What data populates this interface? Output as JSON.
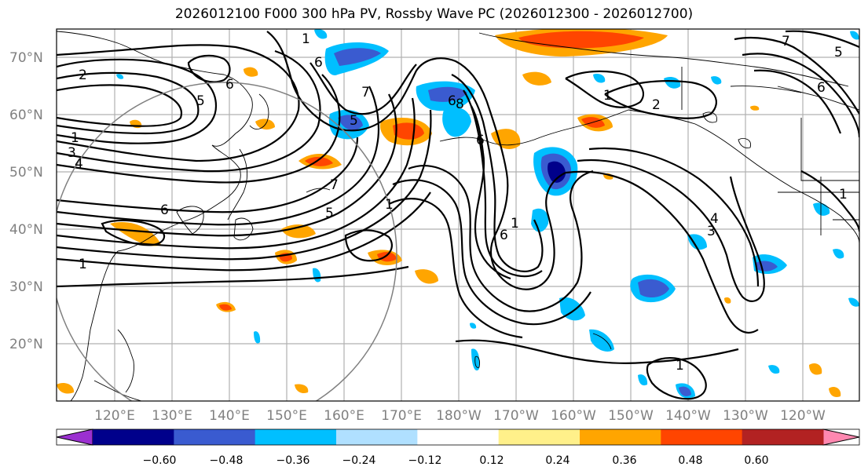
{
  "title": "2026012100 F000 300 hPa PV, Rossby Wave PC (2026012300 - 2026012700)",
  "lat_labels": [
    "70°N",
    "60°N",
    "50°N",
    "40°N",
    "30°N",
    "20°N"
  ],
  "lon_labels": [
    "120°E",
    "130°E",
    "140°E",
    "150°E",
    "160°E",
    "170°E",
    "180°W",
    "170°W",
    "160°W",
    "150°W",
    "140°W",
    "130°W",
    "120°W"
  ],
  "colorbar": {
    "ticks": [
      "−0.60",
      "−0.48",
      "−0.36",
      "−0.24",
      "−0.12",
      "0.12",
      "0.24",
      "0.36",
      "0.48",
      "0.60"
    ],
    "colors": [
      "#9b30d0",
      "#00008b",
      "#3a5bd0",
      "#00bfff",
      "#b0e0ff",
      "#ffffff",
      "#fff08a",
      "#ffa500",
      "#ff4500",
      "#b22222",
      "#ff88b0"
    ]
  },
  "contour_labels": [
    "2",
    "1",
    "3",
    "4",
    "6",
    "1",
    "6",
    "5",
    "1",
    "7",
    "6",
    "5",
    "7",
    "6",
    "8",
    "1",
    "6",
    "5",
    "6",
    "1",
    "2",
    "1",
    "3",
    "4",
    "1",
    "1",
    "6",
    "5",
    "7"
  ],
  "colors": {
    "grid": "#b0b0b0",
    "label": "#808080"
  }
}
